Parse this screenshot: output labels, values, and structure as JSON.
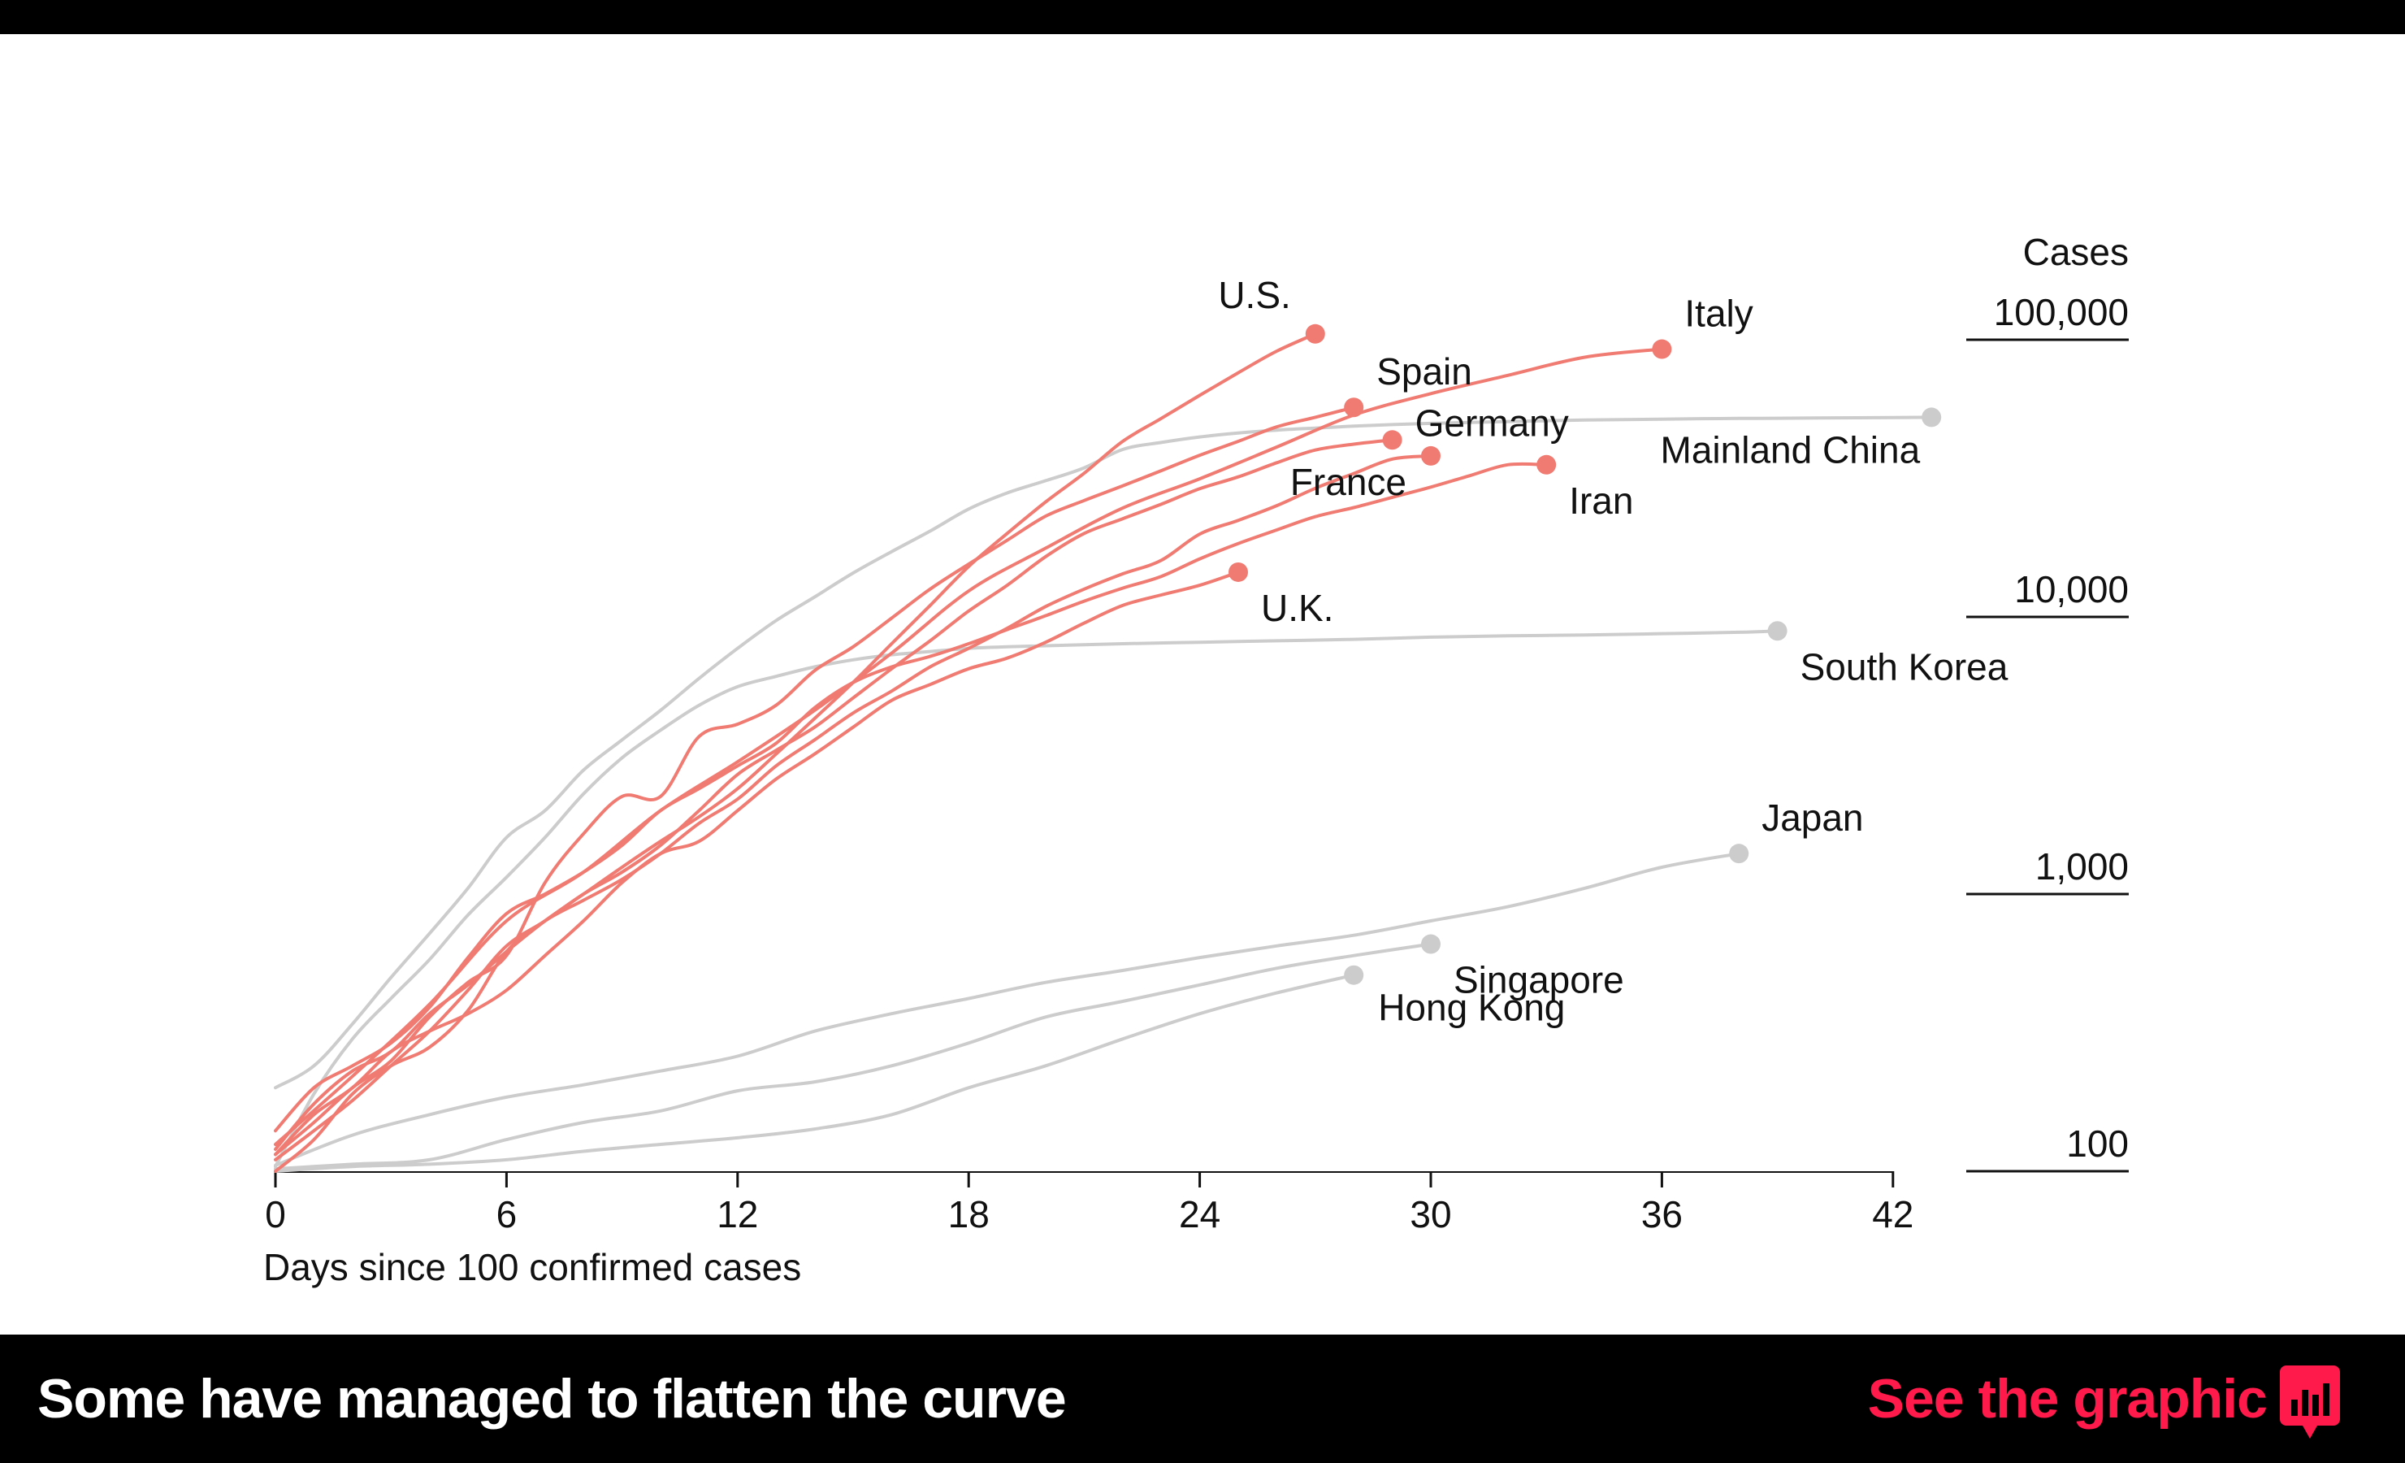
{
  "colors": {
    "highlight": "#f07b72",
    "muted": "#cccccc",
    "accent_link": "#ff1a4b",
    "bar": "#000000"
  },
  "footer": {
    "title": "Some have managed to flatten the curve",
    "link_label": "See the graphic",
    "link_icon": "bar-chart-speech-icon"
  },
  "chart_data": {
    "type": "line",
    "scale": "log",
    "xlabel": "Days since 100 confirmed cases",
    "ylabel": "Cases",
    "xlim": [
      0,
      42
    ],
    "ylim": [
      100,
      100000
    ],
    "x_ticks": [
      0,
      6,
      12,
      18,
      24,
      30,
      36,
      42
    ],
    "y_ticks": [
      {
        "value": 100,
        "label": "100"
      },
      {
        "value": 1000,
        "label": "1,000"
      },
      {
        "value": 10000,
        "label": "10,000"
      },
      {
        "value": 100000,
        "label": "100,000"
      }
    ],
    "series": [
      {
        "name": "Mainland China",
        "highlight": false,
        "label": "Mainland China",
        "label_pos": "below-left",
        "x": [
          0,
          1,
          2,
          3,
          4,
          5,
          6,
          7,
          8,
          9,
          10,
          11,
          12,
          13,
          14,
          15,
          16,
          17,
          18,
          19,
          20,
          21,
          22,
          23,
          24,
          25,
          26,
          27,
          28,
          29,
          30,
          31,
          32,
          33,
          34,
          35,
          36,
          37,
          38,
          39,
          40,
          41,
          42,
          43
        ],
        "y": [
          200,
          240,
          340,
          500,
          720,
          1050,
          1600,
          2000,
          2800,
          3600,
          4600,
          6000,
          7700,
          9700,
          11800,
          14400,
          17200,
          20400,
          24500,
          28000,
          31000,
          34500,
          40200,
          42600,
          44600,
          46100,
          47200,
          48000,
          48800,
          49400,
          49900,
          50300,
          50700,
          51000,
          51300,
          51500,
          51700,
          51900,
          52000,
          52100,
          52200,
          52300,
          52400,
          52500
        ]
      },
      {
        "name": "South Korea",
        "highlight": false,
        "label": "South Korea",
        "label_pos": "below-right",
        "x": [
          0,
          1,
          2,
          3,
          4,
          5,
          6,
          7,
          8,
          9,
          10,
          11,
          12,
          13,
          14,
          15,
          16,
          17,
          18,
          19,
          20,
          22,
          24,
          26,
          28,
          30,
          32,
          34,
          36,
          38,
          39
        ],
        "y": [
          104,
          190,
          300,
          420,
          580,
          840,
          1150,
          1600,
          2300,
          3100,
          3900,
          4800,
          5600,
          6100,
          6600,
          7000,
          7300,
          7500,
          7700,
          7800,
          7870,
          8000,
          8100,
          8200,
          8300,
          8450,
          8550,
          8600,
          8700,
          8800,
          8900
        ]
      },
      {
        "name": "Japan",
        "highlight": false,
        "label": "Japan",
        "label_pos": "above-right",
        "x": [
          0,
          2,
          4,
          6,
          8,
          10,
          12,
          14,
          16,
          18,
          20,
          22,
          24,
          26,
          28,
          30,
          32,
          34,
          36,
          38
        ],
        "y": [
          105,
          135,
          160,
          185,
          205,
          230,
          260,
          320,
          370,
          420,
          480,
          530,
          590,
          650,
          710,
          800,
          900,
          1050,
          1250,
          1400
        ]
      },
      {
        "name": "Singapore",
        "highlight": false,
        "label": "Singapore",
        "label_pos": "below-right",
        "x": [
          0,
          2,
          4,
          6,
          8,
          10,
          12,
          14,
          16,
          18,
          20,
          22,
          24,
          26,
          28,
          30
        ],
        "y": [
          102,
          106,
          110,
          130,
          150,
          165,
          195,
          210,
          240,
          290,
          360,
          410,
          470,
          540,
          600,
          660
        ]
      },
      {
        "name": "Hong Kong",
        "highlight": false,
        "label": "Hong Kong",
        "label_pos": "below-right",
        "x": [
          0,
          2,
          4,
          6,
          8,
          10,
          12,
          14,
          16,
          18,
          20,
          22,
          24,
          26,
          28
        ],
        "y": [
          100,
          104,
          106,
          110,
          118,
          125,
          132,
          142,
          160,
          200,
          240,
          300,
          370,
          440,
          510
        ]
      },
      {
        "name": "U.S.",
        "highlight": true,
        "label": "U.S.",
        "label_pos": "above-left",
        "x": [
          0,
          1,
          2,
          3,
          4,
          5,
          6,
          7,
          8,
          9,
          10,
          11,
          12,
          13,
          14,
          15,
          16,
          17,
          18,
          19,
          20,
          21,
          22,
          23,
          24,
          25,
          26,
          27
        ],
        "y": [
          120,
          175,
          230,
          270,
          370,
          470,
          620,
          800,
          1000,
          1250,
          1550,
          1900,
          2400,
          3200,
          4300,
          5800,
          8000,
          11000,
          15200,
          20000,
          26000,
          33000,
          43000,
          52000,
          63000,
          76000,
          91000,
          105000
        ]
      },
      {
        "name": "Spain",
        "highlight": true,
        "label": "Spain",
        "label_pos": "above-right",
        "x": [
          0,
          1,
          2,
          3,
          4,
          5,
          6,
          7,
          8,
          9,
          10,
          11,
          12,
          13,
          14,
          15,
          16,
          17,
          18,
          19,
          20,
          21,
          22,
          23,
          24,
          25,
          26,
          27,
          28
        ],
        "y": [
          115,
          150,
          200,
          250,
          360,
          480,
          600,
          1100,
          1650,
          2250,
          2250,
          3700,
          4100,
          4800,
          6400,
          7800,
          9900,
          12600,
          15500,
          18900,
          23100,
          26300,
          29700,
          33700,
          38300,
          43000,
          48500,
          52500,
          57000
        ]
      },
      {
        "name": "Italy",
        "highlight": true,
        "label": "Italy",
        "label_pos": "above-right",
        "x": [
          0,
          2,
          4,
          6,
          8,
          10,
          12,
          14,
          16,
          18,
          20,
          22,
          24,
          26,
          28,
          30,
          32,
          34,
          36
        ],
        "y": [
          125,
          220,
          400,
          800,
          1200,
          2000,
          3000,
          4600,
          7400,
          12400,
          17700,
          24700,
          31500,
          41000,
          53500,
          63900,
          74400,
          86500,
          92500
        ]
      },
      {
        "name": "Germany",
        "highlight": true,
        "label": "Germany",
        "label_pos": "right",
        "x": [
          0,
          1,
          2,
          3,
          4,
          5,
          6,
          7,
          8,
          9,
          10,
          11,
          12,
          13,
          14,
          15,
          16,
          17,
          18,
          19,
          20,
          21,
          22,
          23,
          24,
          25,
          26,
          27,
          28,
          29
        ],
        "y": [
          110,
          140,
          180,
          240,
          320,
          450,
          650,
          800,
          1000,
          1200,
          1500,
          2000,
          2700,
          3300,
          4000,
          5100,
          6500,
          8200,
          10500,
          13000,
          16500,
          20000,
          22600,
          25500,
          29000,
          32000,
          36000,
          40000,
          42000,
          43500
        ]
      },
      {
        "name": "France",
        "highlight": true,
        "label": "France",
        "label_pos": "below-left",
        "x": [
          0,
          1,
          2,
          3,
          4,
          5,
          6,
          7,
          8,
          9,
          10,
          11,
          12,
          13,
          14,
          15,
          16,
          17,
          18,
          19,
          20,
          21,
          22,
          23,
          24,
          25,
          26,
          27,
          28,
          29,
          30
        ],
        "y": [
          100,
          130,
          190,
          240,
          280,
          380,
          620,
          800,
          950,
          1130,
          1400,
          1800,
          2200,
          2900,
          3600,
          4500,
          5400,
          6600,
          7700,
          9100,
          10900,
          12600,
          14300,
          16000,
          19900,
          22300,
          25200,
          29100,
          32900,
          37100,
          38100
        ]
      },
      {
        "name": "Iran",
        "highlight": true,
        "label": "Iran",
        "label_pos": "below-right",
        "x": [
          0,
          1,
          2,
          3,
          4,
          5,
          6,
          7,
          8,
          9,
          10,
          11,
          12,
          13,
          14,
          15,
          16,
          17,
          18,
          19,
          20,
          21,
          22,
          23,
          24,
          25,
          26,
          27,
          28,
          29,
          30,
          31,
          32,
          33
        ],
        "y": [
          140,
          200,
          240,
          290,
          390,
          590,
          850,
          1000,
          1200,
          1500,
          2000,
          2400,
          2900,
          3500,
          4700,
          5800,
          6600,
          7200,
          8000,
          9000,
          10100,
          11400,
          12700,
          14000,
          16200,
          18400,
          20600,
          23000,
          24800,
          27000,
          29400,
          32300,
          35400,
          35400
        ]
      },
      {
        "name": "U.K.",
        "highlight": true,
        "label": "U.K.",
        "label_pos": "below-right",
        "x": [
          0,
          1,
          2,
          3,
          4,
          5,
          6,
          7,
          8,
          9,
          10,
          11,
          12,
          13,
          14,
          15,
          16,
          17,
          18,
          19,
          20,
          21,
          22,
          23,
          24,
          25
        ],
        "y": [
          115,
          160,
          200,
          270,
          320,
          370,
          450,
          600,
          800,
          1100,
          1400,
          1550,
          2000,
          2600,
          3200,
          4000,
          5000,
          5700,
          6500,
          7100,
          8100,
          9500,
          11000,
          12000,
          13000,
          14500
        ]
      }
    ]
  }
}
